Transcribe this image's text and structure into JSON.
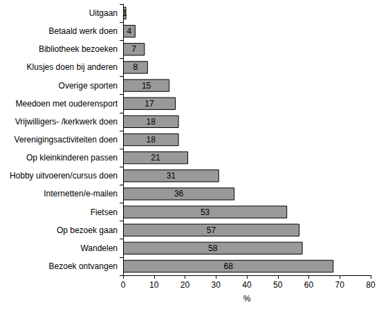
{
  "chart_data": {
    "type": "bar",
    "orientation": "horizontal",
    "categories": [
      "Uitgaan",
      "Betaald werk doen",
      "Bibliotheek bezoeken",
      "Klusjes doen bij anderen",
      "Overige sporten",
      "Meedoen met ouderensport",
      "Vrijwilligers- /kerkwerk doen",
      "Verenigingsactiviteiten doen",
      "Op kleinkinderen passen",
      "Hobby uitvoeren/cursus doen",
      "Internetten/e-mailen",
      "Fietsen",
      "Op bezoek gaan",
      "Wandelen",
      "Bezoek ontvangen"
    ],
    "values": [
      1,
      4,
      7,
      8,
      15,
      17,
      18,
      18,
      21,
      31,
      36,
      53,
      57,
      58,
      68
    ],
    "color": "#999999",
    "x_label": "%",
    "xlim": [
      0,
      80
    ],
    "xticks": [
      0,
      10,
      20,
      30,
      40,
      50,
      60,
      70,
      80
    ],
    "grid": false,
    "data_labels": true
  }
}
